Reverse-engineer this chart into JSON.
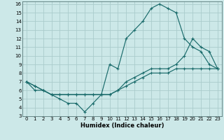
{
  "xlabel": "Humidex (Indice chaleur)",
  "bg_color": "#cce8e8",
  "grid_color": "#aacccc",
  "line_color": "#1a6b6b",
  "xlim": [
    -0.5,
    23.5
  ],
  "ylim": [
    3,
    16.3
  ],
  "xticks": [
    0,
    1,
    2,
    3,
    4,
    5,
    6,
    7,
    8,
    9,
    10,
    11,
    12,
    13,
    14,
    15,
    16,
    17,
    18,
    19,
    20,
    21,
    22,
    23
  ],
  "yticks": [
    3,
    4,
    5,
    6,
    7,
    8,
    9,
    10,
    11,
    12,
    13,
    14,
    15,
    16
  ],
  "line1_x": [
    0,
    1,
    2,
    3,
    4,
    5,
    6,
    7,
    8,
    9,
    10,
    11,
    12,
    13,
    14,
    15,
    16,
    17,
    18,
    19,
    20,
    21,
    22,
    23
  ],
  "line1_y": [
    7,
    6,
    6,
    5.5,
    5,
    4.5,
    4.5,
    3.5,
    4.5,
    5.5,
    9,
    8.5,
    12,
    13,
    14,
    15.5,
    16,
    15.5,
    15,
    12,
    11,
    10.5,
    9,
    8.5
  ],
  "line2_x": [
    0,
    1,
    2,
    3,
    4,
    5,
    6,
    7,
    8,
    9,
    10,
    11,
    12,
    13,
    14,
    15,
    16,
    17,
    18,
    19,
    20,
    21,
    22,
    23
  ],
  "line2_y": [
    7,
    6.5,
    6,
    5.5,
    5.5,
    5.5,
    5.5,
    5.5,
    5.5,
    5.5,
    5.5,
    6,
    7,
    7.5,
    8,
    8.5,
    8.5,
    8.5,
    9,
    10,
    12,
    11,
    10.5,
    8.5
  ],
  "line3_x": [
    0,
    1,
    2,
    3,
    4,
    5,
    6,
    7,
    8,
    9,
    10,
    11,
    12,
    13,
    14,
    15,
    16,
    17,
    18,
    19,
    20,
    21,
    22,
    23
  ],
  "line3_y": [
    7,
    6.5,
    6,
    5.5,
    5.5,
    5.5,
    5.5,
    5.5,
    5.5,
    5.5,
    5.5,
    6,
    6.5,
    7,
    7.5,
    8,
    8,
    8,
    8.5,
    8.5,
    8.5,
    8.5,
    8.5,
    8.5
  ]
}
